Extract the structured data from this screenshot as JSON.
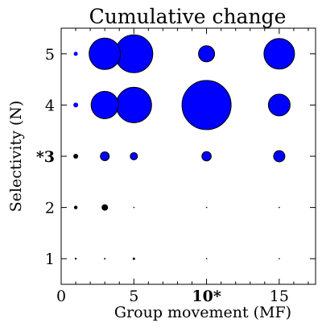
{
  "chart_data": {
    "type": "scatter",
    "title": "Cumulative change",
    "xlabel": "Group movement (MF)",
    "ylabel": "Selectivity (N)",
    "xlim": [
      0,
      17.5
    ],
    "ylim": [
      0.5,
      5.5
    ],
    "x_ticks": [
      {
        "value": 0,
        "label": "0",
        "bold": false
      },
      {
        "value": 5,
        "label": "5",
        "bold": false
      },
      {
        "value": 10,
        "label": "10*",
        "bold": true
      },
      {
        "value": 15,
        "label": "15",
        "bold": false
      }
    ],
    "y_ticks": [
      {
        "value": 1,
        "label": "1",
        "bold": false
      },
      {
        "value": 2,
        "label": "2",
        "bold": false
      },
      {
        "value": 3,
        "label": "*3",
        "bold": true
      },
      {
        "value": 4,
        "label": "4",
        "bold": false
      },
      {
        "value": 5,
        "label": "5",
        "bold": false
      }
    ],
    "x_minor_ticks": [
      1,
      2,
      3,
      4,
      6,
      7,
      8,
      9,
      11,
      12,
      13,
      14,
      16,
      17
    ],
    "grid": false,
    "legend": "none",
    "marker_edge_color": "#000000",
    "points": [
      {
        "x": 1,
        "y": 1,
        "size": 1.2,
        "color": "#000000"
      },
      {
        "x": 3,
        "y": 1,
        "size": 1.0,
        "color": "#000000"
      },
      {
        "x": 5,
        "y": 1,
        "size": 1.5,
        "color": "#000000"
      },
      {
        "x": 10,
        "y": 1,
        "size": 0.8,
        "color": "#000000"
      },
      {
        "x": 15,
        "y": 1,
        "size": 0.8,
        "color": "#000000"
      },
      {
        "x": 1,
        "y": 2,
        "size": 2.2,
        "color": "#000000"
      },
      {
        "x": 3,
        "y": 2,
        "size": 3.5,
        "color": "#000000"
      },
      {
        "x": 5,
        "y": 2,
        "size": 0.8,
        "color": "#000000"
      },
      {
        "x": 10,
        "y": 2,
        "size": 0.8,
        "color": "#000000"
      },
      {
        "x": 15,
        "y": 2,
        "size": 0.8,
        "color": "#000000"
      },
      {
        "x": 1,
        "y": 3,
        "size": 3.0,
        "color": "#000000"
      },
      {
        "x": 3,
        "y": 3,
        "size": 5.5,
        "color": "#0000ff"
      },
      {
        "x": 5,
        "y": 3,
        "size": 4.5,
        "color": "#0000ff"
      },
      {
        "x": 10,
        "y": 3,
        "size": 5.8,
        "color": "#0000ff"
      },
      {
        "x": 15,
        "y": 3,
        "size": 7.0,
        "color": "#0000ff"
      },
      {
        "x": 1,
        "y": 4,
        "size": 3.0,
        "color": "#0000ff"
      },
      {
        "x": 3,
        "y": 4,
        "size": 17.0,
        "color": "#0000ff"
      },
      {
        "x": 5,
        "y": 4,
        "size": 22.0,
        "color": "#0000ff"
      },
      {
        "x": 10,
        "y": 4,
        "size": 30.5,
        "color": "#0000ff"
      },
      {
        "x": 15,
        "y": 4,
        "size": 13.5,
        "color": "#0000ff"
      },
      {
        "x": 1,
        "y": 5,
        "size": 2.5,
        "color": "#0000ff"
      },
      {
        "x": 3,
        "y": 5,
        "size": 19.5,
        "color": "#0000ff"
      },
      {
        "x": 5,
        "y": 5,
        "size": 23.5,
        "color": "#0000ff"
      },
      {
        "x": 10,
        "y": 5,
        "size": 10.0,
        "color": "#0000ff"
      },
      {
        "x": 15,
        "y": 5,
        "size": 19.0,
        "color": "#0000ff"
      }
    ]
  }
}
